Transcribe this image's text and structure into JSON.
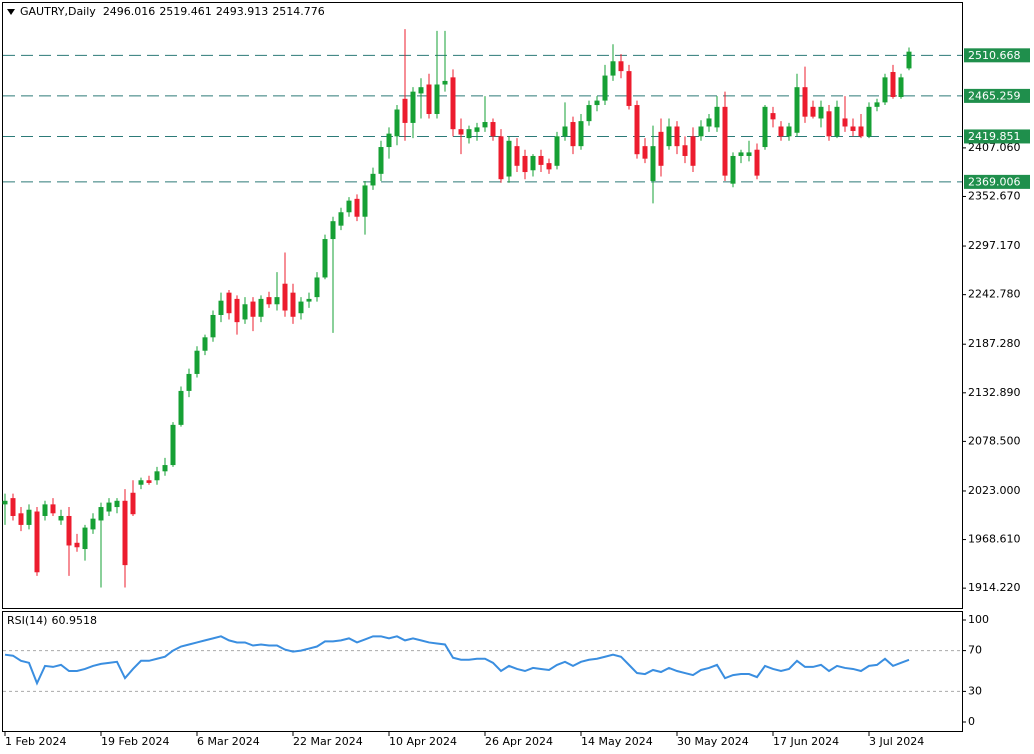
{
  "chart_data": {
    "type": "candlestick",
    "title": "GAUTRY,Daily",
    "x": [
      "1 Feb 2024",
      null,
      null,
      null,
      null,
      null,
      null,
      null,
      null,
      null,
      null,
      null,
      "19 Feb 2024",
      null,
      null,
      null,
      null,
      null,
      null,
      null,
      null,
      null,
      null,
      null,
      "6 Mar 2024",
      null,
      null,
      null,
      null,
      null,
      null,
      null,
      null,
      null,
      null,
      null,
      "22 Mar 2024",
      null,
      null,
      null,
      null,
      null,
      null,
      null,
      null,
      null,
      null,
      null,
      "10 Apr 2024",
      null,
      null,
      null,
      null,
      null,
      null,
      null,
      null,
      null,
      null,
      null,
      "26 Apr 2024",
      null,
      null,
      null,
      null,
      null,
      null,
      null,
      null,
      null,
      null,
      null,
      "14 May 2024",
      null,
      null,
      null,
      null,
      null,
      null,
      null,
      null,
      null,
      null,
      null,
      "30 May 2024",
      null,
      null,
      null,
      null,
      null,
      null,
      null,
      null,
      null,
      null,
      null,
      "17 Jun 2024",
      null,
      null,
      null,
      null,
      null,
      null,
      null,
      null,
      null,
      null,
      null,
      "3 Jul 2024",
      null,
      null,
      null,
      null,
      null
    ],
    "open": [
      2008,
      2015,
      1998,
      1985,
      2000,
      1995,
      2008,
      1990,
      1995,
      1965,
      1958,
      1980,
      1990,
      2000,
      2005,
      2012,
      2021,
      2030,
      2035,
      2035,
      2045,
      2052,
      2097,
      2135,
      2154,
      2180,
      2195,
      2220,
      2245,
      2238,
      2215,
      2235,
      2218,
      2240,
      2232,
      2255,
      2245,
      2222,
      2235,
      2240,
      2262,
      2305,
      2320,
      2335,
      2350,
      2330,
      2365,
      2378,
      2408,
      2420,
      2462,
      2435,
      2468,
      2478,
      2445,
      2478,
      2486,
      2428,
      2418,
      2425,
      2430,
      2436,
      2420,
      2375,
      2409,
      2398,
      2382,
      2398,
      2390,
      2387,
      2420,
      2436,
      2409,
      2437,
      2455,
      2460,
      2488,
      2504,
      2493,
      2455,
      2409,
      2370,
      2425,
      2409,
      2431,
      2410,
      2420,
      2420,
      2431,
      2430,
      2453,
      2367,
      2398,
      2398,
      2405,
      2408,
      2446,
      2431,
      2420,
      2424,
      2475,
      2453,
      2440,
      2448,
      2420,
      2440,
      2431,
      2431,
      2420,
      2453,
      2458,
      2492,
      2464,
      2496.016
    ],
    "high": [
      2020,
      2020,
      2005,
      2008,
      2005,
      2012,
      2015,
      2002,
      2005,
      1975,
      1985,
      1998,
      2010,
      2015,
      2015,
      2025,
      2035,
      2038,
      2040,
      2050,
      2060,
      2100,
      2140,
      2160,
      2185,
      2198,
      2225,
      2245,
      2248,
      2242,
      2240,
      2240,
      2242,
      2246,
      2268,
      2290,
      2255,
      2240,
      2245,
      2268,
      2310,
      2330,
      2340,
      2352,
      2355,
      2370,
      2385,
      2415,
      2430,
      2455,
      2540,
      2475,
      2485,
      2490,
      2538,
      2538,
      2495,
      2440,
      2432,
      2435,
      2465,
      2440,
      2428,
      2420,
      2418,
      2405,
      2400,
      2405,
      2395,
      2425,
      2458,
      2442,
      2445,
      2460,
      2465,
      2500,
      2523,
      2512,
      2500,
      2460,
      2418,
      2432,
      2440,
      2440,
      2437,
      2420,
      2430,
      2438,
      2445,
      2465,
      2470,
      2402,
      2405,
      2415,
      2412,
      2455,
      2453,
      2437,
      2435,
      2490,
      2498,
      2460,
      2460,
      2455,
      2460,
      2465,
      2440,
      2445,
      2458,
      2462,
      2490,
      2500,
      2490,
      2519.461
    ],
    "low": [
      1985,
      1990,
      1978,
      1980,
      1928,
      1990,
      1995,
      1985,
      1928,
      1955,
      1945,
      1975,
      1915,
      1995,
      1998,
      1915,
      1995,
      2025,
      2030,
      2030,
      2040,
      2050,
      2095,
      2128,
      2150,
      2175,
      2190,
      2212,
      2215,
      2198,
      2210,
      2202,
      2212,
      2228,
      2225,
      2218,
      2210,
      2215,
      2228,
      2235,
      2260,
      2200,
      2315,
      2330,
      2325,
      2310,
      2360,
      2370,
      2395,
      2410,
      2415,
      2418,
      2440,
      2440,
      2440,
      2470,
      2420,
      2400,
      2412,
      2415,
      2425,
      2415,
      2368,
      2368,
      2380,
      2372,
      2375,
      2380,
      2378,
      2383,
      2415,
      2400,
      2405,
      2432,
      2448,
      2455,
      2482,
      2485,
      2450,
      2395,
      2390,
      2345,
      2375,
      2405,
      2400,
      2390,
      2380,
      2415,
      2425,
      2425,
      2370,
      2363,
      2390,
      2392,
      2372,
      2405,
      2430,
      2415,
      2415,
      2420,
      2435,
      2440,
      2430,
      2415,
      2418,
      2425,
      2420,
      2418,
      2418,
      2448,
      2455,
      2462,
      2462,
      2493.913
    ],
    "close": [
      2012,
      1995,
      1985,
      2002,
      1932,
      2008,
      1998,
      1995,
      1962,
      1960,
      1982,
      1992,
      2005,
      2010,
      2012,
      1940,
      1997,
      2035,
      2032,
      2045,
      2052,
      2097,
      2135,
      2154,
      2180,
      2195,
      2220,
      2236,
      2222,
      2212,
      2232,
      2218,
      2238,
      2232,
      2240,
      2225,
      2218,
      2235,
      2238,
      2262,
      2305,
      2325,
      2335,
      2348,
      2330,
      2365,
      2378,
      2408,
      2423,
      2450,
      2435,
      2470,
      2475,
      2445,
      2478,
      2482,
      2428,
      2422,
      2428,
      2430,
      2436,
      2420,
      2372,
      2415,
      2387,
      2380,
      2398,
      2388,
      2383,
      2420,
      2431,
      2409,
      2437,
      2455,
      2460,
      2488,
      2504,
      2493,
      2454,
      2400,
      2395,
      2409,
      2387,
      2431,
      2409,
      2398,
      2387,
      2431,
      2440,
      2453,
      2376,
      2398,
      2402,
      2402,
      2376,
      2453,
      2439,
      2420,
      2431,
      2475,
      2442,
      2442,
      2453,
      2420,
      2453,
      2431,
      2426,
      2420,
      2453,
      2458,
      2486,
      2464,
      2486,
      2514.776
    ],
    "up_color": "#16a034",
    "down_color": "#ec1c2e",
    "ylim": [
      1892,
      2567
    ],
    "yticks": [
      {
        "value": 1914.22,
        "label": "1914.220"
      },
      {
        "value": 1968.61,
        "label": "1968.610"
      },
      {
        "value": 2023,
        "label": "2023.000"
      },
      {
        "value": 2078.5,
        "label": "2078.500"
      },
      {
        "value": 2132.89,
        "label": "2132.890"
      },
      {
        "value": 2187.28,
        "label": "2187.280"
      },
      {
        "value": 2242.78,
        "label": "2242.780"
      },
      {
        "value": 2297.17,
        "label": "2297.170"
      },
      {
        "value": 2352.67,
        "label": "2352.670"
      },
      {
        "value": 2407.06,
        "label": "2407.060"
      }
    ],
    "levels": [
      2510.668,
      2465.259,
      2419.851,
      2369.006
    ],
    "level_color": "#2c7a78",
    "level_label_color": "#1f8f4c",
    "indicator": {
      "type": "line",
      "title": "RSI(14)",
      "color": "#3a8ee0",
      "ylim": [
        0,
        100
      ],
      "yticks": [
        100,
        70,
        30,
        0
      ],
      "values": [
        66,
        65,
        60,
        58,
        38,
        55,
        54,
        56,
        50,
        50,
        52,
        55,
        57,
        58,
        59,
        43,
        52,
        60,
        60,
        62,
        64,
        70,
        74,
        76,
        78,
        80,
        82,
        84,
        80,
        78,
        78,
        75,
        76,
        75,
        75,
        71,
        69,
        70,
        72,
        74,
        79,
        79,
        80,
        82,
        78,
        81,
        84,
        84,
        82,
        84,
        80,
        82,
        80,
        78,
        77,
        76,
        63,
        61,
        61,
        62,
        62,
        58,
        50,
        55,
        52,
        50,
        53,
        52,
        51,
        56,
        59,
        55,
        59,
        61,
        62,
        64,
        66,
        64,
        56,
        48,
        47,
        51,
        49,
        53,
        50,
        48,
        46,
        51,
        53,
        56,
        43,
        46,
        47,
        47,
        44,
        55,
        52,
        50,
        52,
        60,
        54,
        54,
        56,
        50,
        55,
        53,
        52,
        50,
        55,
        56,
        62,
        55,
        58,
        60.9518
      ]
    }
  }
}
